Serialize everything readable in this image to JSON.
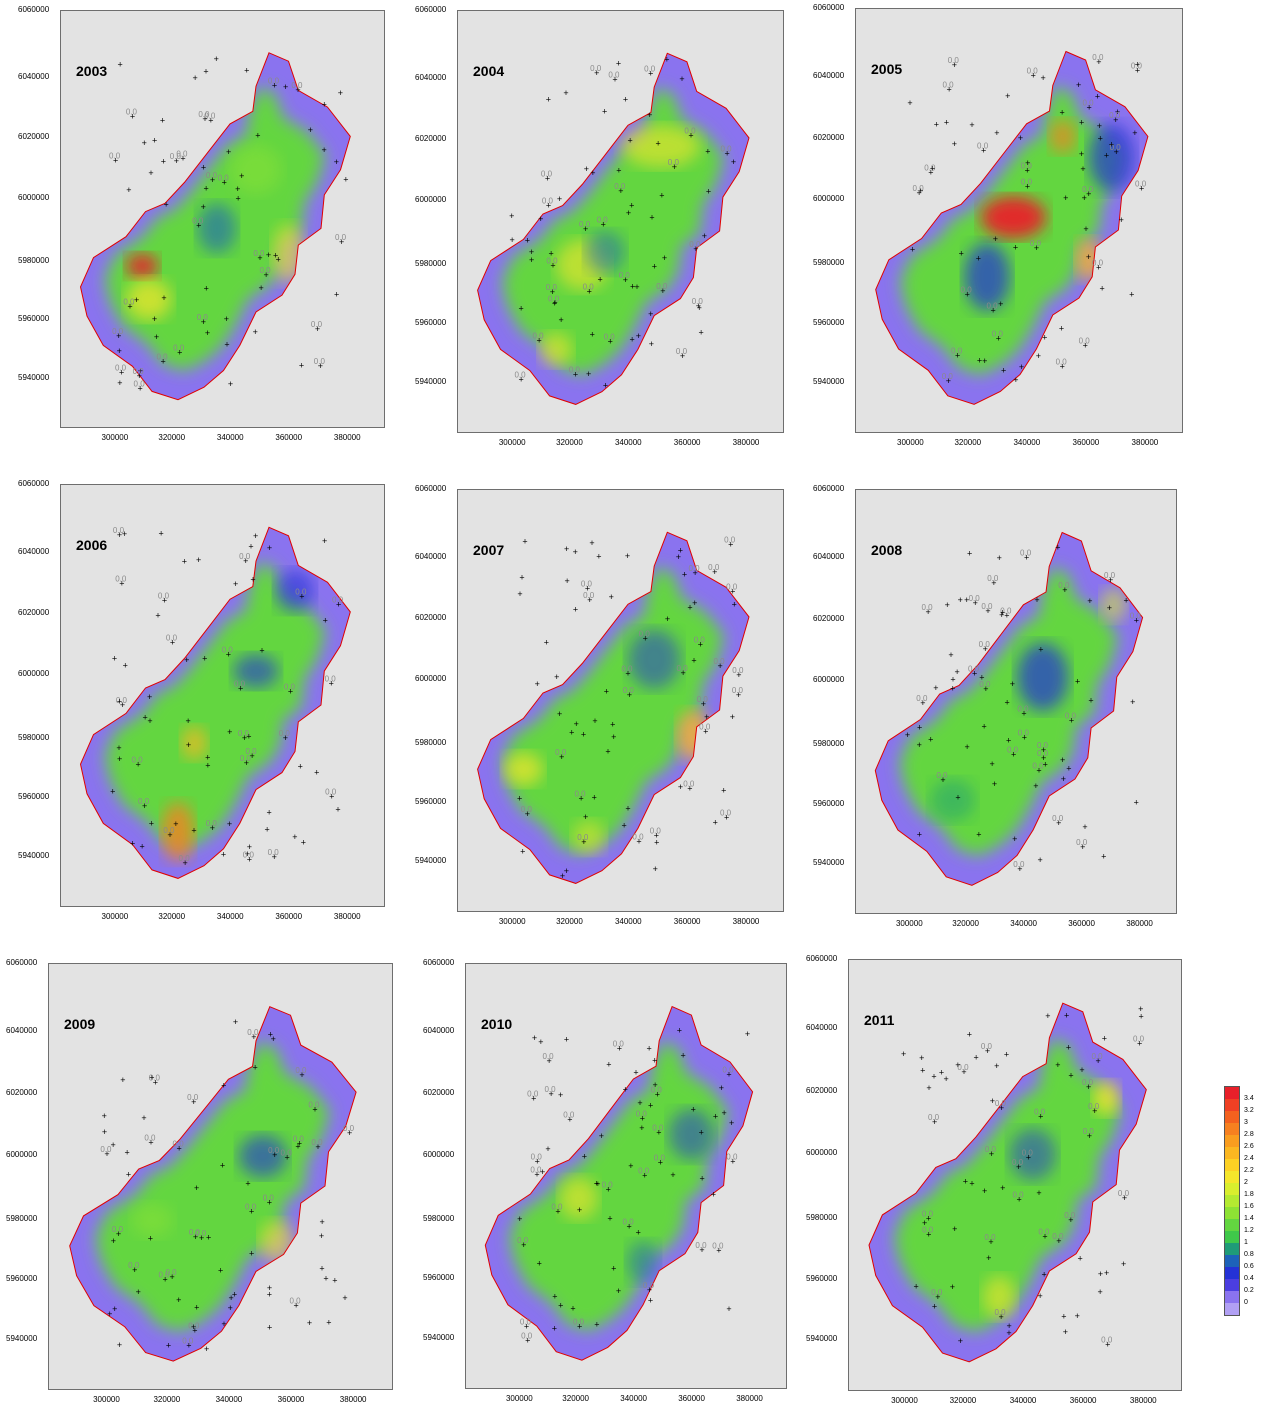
{
  "panels": [
    {
      "year": "2003"
    },
    {
      "year": "2004"
    },
    {
      "year": "2005"
    },
    {
      "year": "2006"
    },
    {
      "year": "2007"
    },
    {
      "year": "2008"
    },
    {
      "year": "2009"
    },
    {
      "year": "2010"
    },
    {
      "year": "2011"
    }
  ],
  "y_ticks": [
    "6060000",
    "6040000",
    "6020000",
    "6000000",
    "5980000",
    "5960000",
    "5940000"
  ],
  "x_ticks": [
    "300000",
    "320000",
    "340000",
    "360000",
    "380000"
  ],
  "point_label": "0.0",
  "legend": {
    "labels": [
      "3.4",
      "3.2",
      "3",
      "2.8",
      "2.6",
      "2.4",
      "2.2",
      "2",
      "1.8",
      "1.6",
      "1.4",
      "1.2",
      "1",
      "0.8",
      "0.6",
      "0.4",
      "0.2",
      "0"
    ],
    "colors": [
      "#e8202a",
      "#ef4024",
      "#f3611f",
      "#f68020",
      "#f99d1f",
      "#fbb721",
      "#fdd124",
      "#f5e62b",
      "#d9ee2e",
      "#b4ea31",
      "#8ee234",
      "#63d640",
      "#3fc84a",
      "#1f9b78",
      "#1d62b9",
      "#2432d6",
      "#4b3ee0",
      "#8a73ef",
      "#b1a0f4"
    ]
  }
}
